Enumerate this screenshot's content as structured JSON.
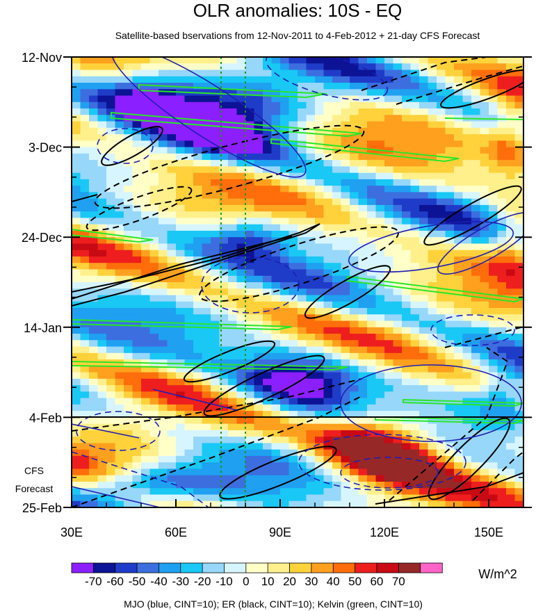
{
  "chart_data": {
    "type": "heatmap",
    "title": "OLR anomalies: 10S - EQ",
    "subtitle": "Satellite-based bservations from 12-Nov-2011 to 4-Feb-2012 + 21-day CFS Forecast",
    "x_axis": {
      "range": [
        30,
        160
      ],
      "ticks": [
        30,
        60,
        90,
        120,
        150
      ],
      "tick_labels": [
        "30E",
        "60E",
        "90E",
        "120E",
        "150E"
      ]
    },
    "y_axis": {
      "range_days": [
        0,
        105
      ],
      "ticks_days": [
        0,
        21,
        42,
        63,
        84,
        105
      ],
      "tick_labels": [
        "12-Nov",
        "3-Dec",
        "24-Dec",
        "14-Jan",
        "4-Feb",
        "25-Feb"
      ],
      "direction": "time increases downward"
    },
    "observation_end_label": "4-Feb",
    "forecast_label": [
      "CFS",
      "Forecast"
    ],
    "reference_longitudes": [
      73,
      80
    ],
    "units": "W/m^2",
    "colorbar": {
      "levels": [
        -70,
        -60,
        -50,
        -40,
        -30,
        -20,
        -10,
        0,
        10,
        20,
        30,
        40,
        50,
        60,
        70
      ],
      "colors": [
        "#8c1fff",
        "#0c1394",
        "#1f3cc8",
        "#3c6ee0",
        "#1fa0f0",
        "#19c8f5",
        "#96d7fa",
        "#d7f5ff",
        "#ffffc8",
        "#fff08c",
        "#ffd23c",
        "#ffa01f",
        "#ff6e0a",
        "#ee1e1e",
        "#c80a14",
        "#962828",
        "#ff64c8"
      ]
    },
    "overlays": [
      {
        "name": "MJO",
        "color": "#1e1eb4",
        "cint": 10
      },
      {
        "name": "ER",
        "color": "#000000",
        "cint": 10
      },
      {
        "name": "Kelvin",
        "color": "#28e628",
        "cint": 10
      }
    ],
    "footer": "MJO (blue, CINT=10); ER (black, CINT=10); Kelvin (green, CINT=10)"
  }
}
